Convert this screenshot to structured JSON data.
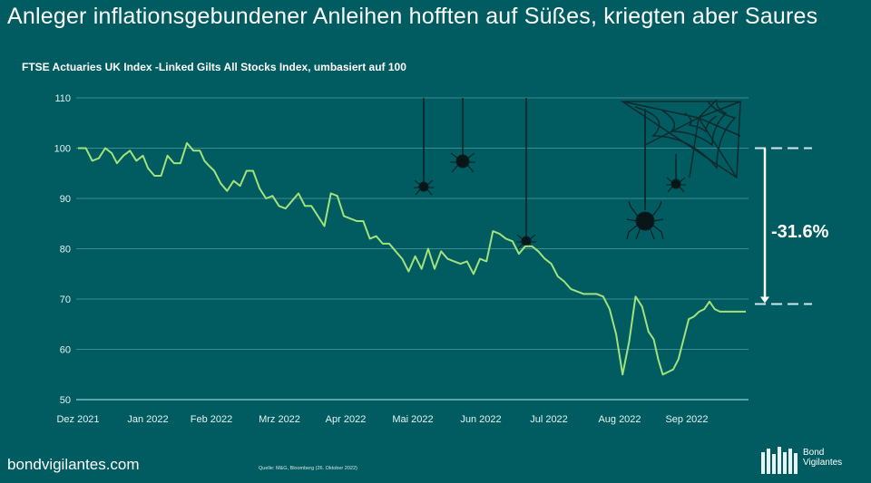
{
  "header": {
    "title": "Anleger inflationsgebundener  Anleihen hofften auf Süßes, kriegten aber Saures"
  },
  "footer": {
    "site": "bondvigilantes.com",
    "source": "Quelle: M&G, Bloomberg (26. Oktober 2022)",
    "logo_line1": "Bond",
    "logo_line2": "Vigilantes"
  },
  "colors": {
    "background": "#005c60",
    "line": "#a3e27a",
    "grid": "#3d8c8f",
    "annotation": "#cfe8ec",
    "spider": "#0a1518"
  },
  "chart_data": {
    "type": "line",
    "title": "FTSE Actuaries UK Index -Linked Gilts All Stocks Index, umbasiert auf 100",
    "xlabel": "",
    "ylabel": "",
    "ylim": [
      50,
      110
    ],
    "yticks": [
      50,
      60,
      70,
      80,
      90,
      100,
      110
    ],
    "ytick_labels": [
      "50",
      "60",
      "70",
      "80",
      "90",
      "100",
      "110"
    ],
    "grid": true,
    "x_tick_labels": [
      "Dez 2021",
      "Jan 2022",
      "Feb 2022",
      "Mrz 2022",
      "Apr 2022",
      "Mai 2022",
      "Jun 2022",
      "Jul 2022",
      "Aug 2022",
      "Sep 2022"
    ],
    "x_range_months": [
      0,
      10.3
    ],
    "series": [
      {
        "name": "FTSE Actuaries UK Index-Linked Gilts All Stocks",
        "x": [
          0,
          0.12,
          0.22,
          0.32,
          0.42,
          0.52,
          0.6,
          0.7,
          0.8,
          0.9,
          1.0,
          1.08,
          1.18,
          1.28,
          1.38,
          1.48,
          1.58,
          1.68,
          1.78,
          1.88,
          1.95,
          2.02,
          2.1,
          2.2,
          2.3,
          2.4,
          2.5,
          2.6,
          2.7,
          2.8,
          2.9,
          3.0,
          3.1,
          3.2,
          3.3,
          3.4,
          3.5,
          3.6,
          3.7,
          3.8,
          3.9,
          4.0,
          4.1,
          4.2,
          4.3,
          4.4,
          4.5,
          4.6,
          4.7,
          4.8,
          4.9,
          5.0,
          5.1,
          5.2,
          5.3,
          5.4,
          5.5,
          5.6,
          5.7,
          5.8,
          5.9,
          6.0,
          6.1,
          6.2,
          6.3,
          6.4,
          6.5,
          6.6,
          6.7,
          6.8,
          6.9,
          7.0,
          7.1,
          7.2,
          7.3,
          7.4,
          7.5,
          7.6,
          7.7,
          7.8,
          7.9,
          8.0,
          8.1,
          8.2,
          8.3,
          8.4,
          8.5,
          8.6,
          8.7,
          8.8,
          8.88,
          8.95,
          9.02,
          9.1,
          9.18,
          9.26,
          9.34,
          9.42,
          9.5,
          9.58,
          9.66,
          9.74,
          9.82,
          9.9,
          9.98,
          10.06,
          10.14,
          10.22,
          10.3
        ],
        "values": [
          100,
          100,
          97.5,
          98,
          100,
          99,
          97,
          98.5,
          99.5,
          97.5,
          98.5,
          96,
          94.5,
          94.5,
          98.5,
          97,
          97,
          101,
          99.5,
          99.5,
          97.5,
          96.5,
          95.5,
          93,
          91.5,
          93.5,
          92.5,
          95.5,
          95.5,
          92,
          90,
          90.5,
          88.5,
          88,
          89.5,
          91,
          88.5,
          88.5,
          86.5,
          84.5,
          91,
          90.5,
          86.5,
          86,
          85.5,
          85.5,
          82,
          82.5,
          81,
          81,
          79.5,
          78,
          75.5,
          78.5,
          76,
          80,
          76,
          79.5,
          78,
          77.5,
          77,
          77.5,
          75,
          78,
          77.5,
          83.5,
          83,
          82,
          81.5,
          79,
          80.5,
          80.5,
          79.5,
          78,
          77,
          74.5,
          73.5,
          72,
          71.5,
          71,
          71,
          71,
          70.5,
          68,
          63,
          55,
          61.5,
          70.5,
          68.5,
          63.5,
          62,
          58,
          55,
          55.5,
          56,
          58,
          62,
          66,
          66.5,
          67.5,
          68,
          69.5,
          68,
          67.5,
          67.5,
          67.5,
          67.5,
          67.5,
          67.5
        ]
      }
    ],
    "annotations": [
      {
        "type": "range-arrow",
        "from": 100,
        "to": 69,
        "label": "-31.6%"
      },
      {
        "type": "decoration",
        "label": "spiders-and-cobweb"
      }
    ]
  }
}
